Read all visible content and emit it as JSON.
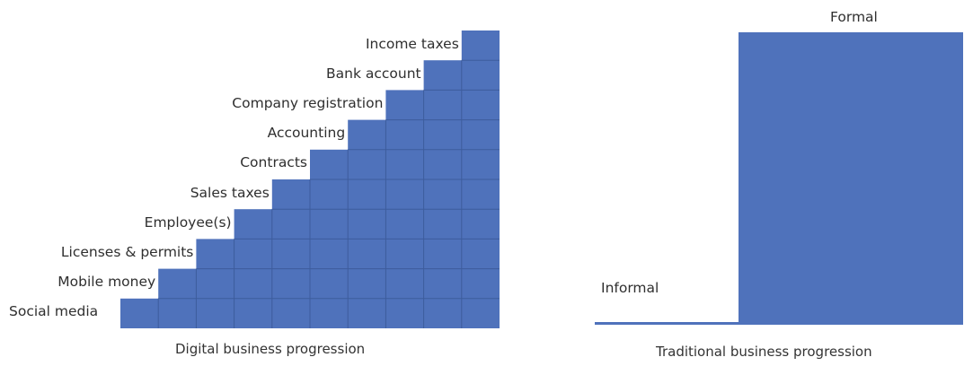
{
  "left_diagram": {
    "steps": [
      "Social media",
      "Mobile money",
      "Licenses & permits",
      "Employee(s)",
      "Sales taxes",
      "Contracts",
      "Accounting",
      "Company registration",
      "Bank account",
      "Income taxes"
    ],
    "caption": "Digital business progression"
  },
  "right_diagram": {
    "informal_label": "Informal",
    "formal_label": "Formal",
    "caption": "Traditional business progression"
  },
  "colors": {
    "fill": "#4f72bb",
    "grid": "#3d5c9c"
  }
}
